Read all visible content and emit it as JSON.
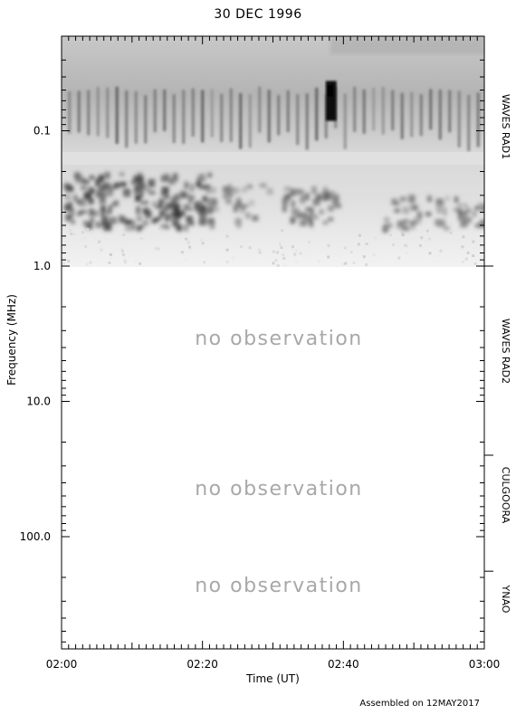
{
  "chart_data": {
    "type": "heatmap",
    "title": "30 DEC 1996",
    "xlabel": "Time (UT)",
    "ylabel": "Frequency (MHz)",
    "x_ticks": [
      "02:00",
      "02:20",
      "02:40",
      "03:00"
    ],
    "y_ticks": [
      "0.1",
      "1.0",
      "10.0",
      "100.0"
    ],
    "y_scale": "log",
    "y_inverted": true,
    "grid": false,
    "colormap": "grayscale (darker = stronger emission)",
    "instrument_bands": [
      {
        "name": "WAVES RAD1",
        "status": "observed"
      },
      {
        "name": "WAVES RAD2",
        "status": "no observation"
      },
      {
        "name": "CULGOORA",
        "status": "no observation"
      },
      {
        "name": "YNAO",
        "status": "no observation"
      }
    ],
    "no_data_label": "no observation",
    "notable_features": [
      {
        "time": "02:38",
        "freq_mhz": 0.05,
        "intensity": "very strong burst"
      }
    ]
  },
  "footer": "Assembled on 12MAY2017"
}
